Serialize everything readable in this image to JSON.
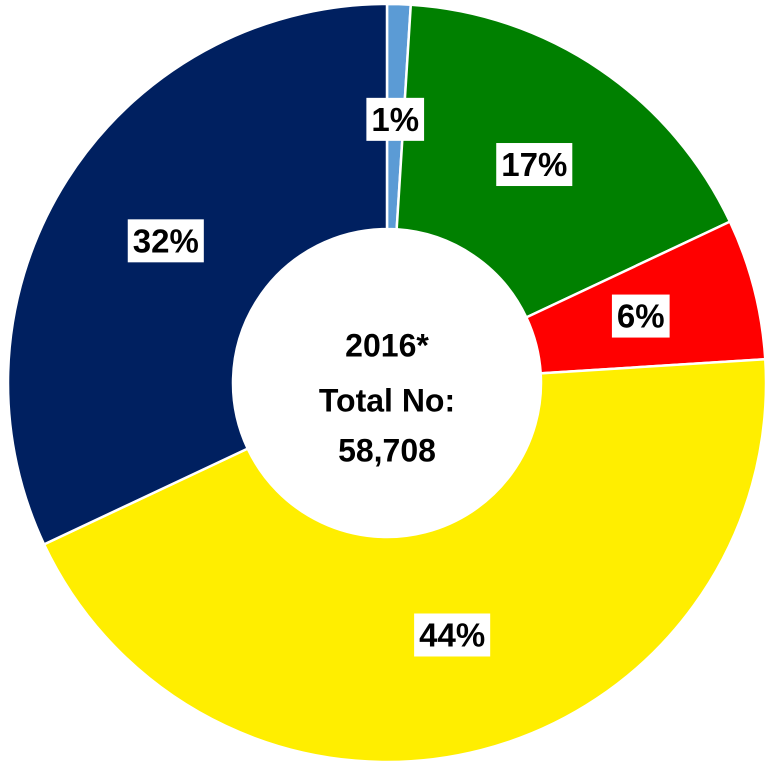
{
  "chart_data": {
    "type": "donut",
    "center_label": [
      "2016*",
      "Total No:",
      "58,708"
    ],
    "values": [
      1,
      17,
      6,
      44,
      32
    ],
    "value_labels": [
      "1%",
      "17%",
      "6%",
      "44%",
      "32%"
    ],
    "colors": [
      "#5b9bd5",
      "#008000",
      "#ff0000",
      "#ffee00",
      "#002060"
    ]
  }
}
